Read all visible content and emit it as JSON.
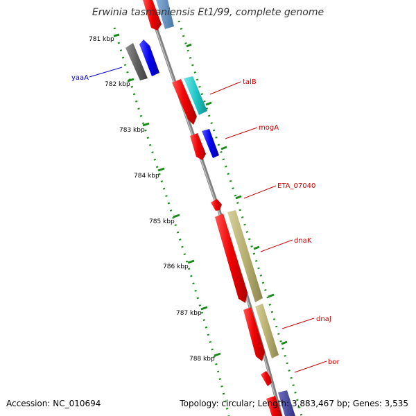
{
  "title": "Erwinia tasmaniensis Et1/99, complete genome",
  "footer": {
    "accession": "Accession: NC_010694",
    "stats": "Topology: circular; Length: 3,883,467 bp; Genes: 3,535"
  },
  "colors": {
    "backbone": "#808080",
    "tick": "#1a8a1a",
    "tick_label": "#000000",
    "forward_label": "#cc0000",
    "reverse_label": "#0000cc",
    "dnaK_dnaJ_partner": "#b8b070",
    "talB_partner": "#22c8c8",
    "mogA_partner": "#0000ee",
    "yaaA_gene": "#606060"
  },
  "ticks": [
    "781 kbp",
    "782 kbp",
    "783 kbp",
    "784 kbp",
    "785 kbp",
    "786 kbp",
    "787 kbp",
    "788 kbp"
  ],
  "genes": [
    {
      "name": "yaaA",
      "strand": "reverse",
      "color": "#606060"
    },
    {
      "name": "talB",
      "strand": "forward",
      "color": "#ee0000"
    },
    {
      "name": "mogA",
      "strand": "forward",
      "color": "#ee0000"
    },
    {
      "name": "ETA_07040",
      "strand": "forward",
      "color": "#ee0000"
    },
    {
      "name": "dnaK",
      "strand": "forward",
      "color": "#ee0000"
    },
    {
      "name": "dnaJ",
      "strand": "forward",
      "color": "#ee0000"
    },
    {
      "name": "bor",
      "strand": "forward",
      "color": "#ee0000"
    }
  ]
}
